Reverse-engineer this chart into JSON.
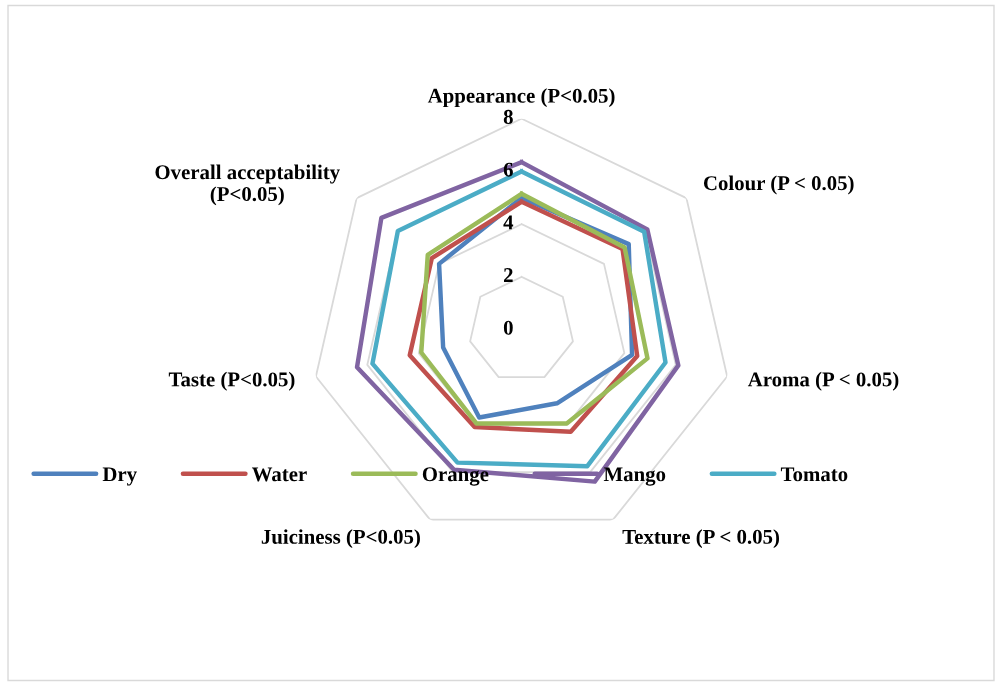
{
  "chart_data": {
    "type": "radar",
    "categories": [
      "Appearance (P<0.05)",
      "Colour (P < 0.05)",
      "Aroma (P < 0.05)",
      "Texture (P < 0.05)",
      "Juiciness (P<0.05)",
      "Taste (P<0.05)",
      "Overall acceptability\n(P<0.05)"
    ],
    "series": [
      {
        "name": "Dry",
        "color": "#4f81bd",
        "values": [
          5.0,
          5.2,
          4.3,
          3.1,
          3.7,
          3.05,
          4.0
        ]
      },
      {
        "name": "Water",
        "color": "#c0504d",
        "values": [
          4.85,
          4.9,
          4.5,
          4.3,
          4.1,
          4.35,
          4.35
        ]
      },
      {
        "name": "Orange",
        "color": "#9bbb59",
        "values": [
          5.15,
          5.0,
          4.9,
          3.95,
          3.95,
          3.9,
          4.55
        ]
      },
      {
        "name": "Mango",
        "color": "#8064a2",
        "values": [
          6.35,
          6.1,
          6.1,
          6.4,
          5.9,
          6.4,
          6.8
        ]
      },
      {
        "name": "Tomato",
        "color": "#4bacc6",
        "values": [
          6.0,
          5.95,
          5.6,
          5.75,
          5.6,
          5.8,
          6.0
        ]
      }
    ],
    "ylim": [
      0,
      8
    ],
    "yticks": [
      0,
      2,
      4,
      6,
      8
    ],
    "grid": true,
    "legend": "bottom",
    "marker": "none",
    "line_style": "solid"
  }
}
